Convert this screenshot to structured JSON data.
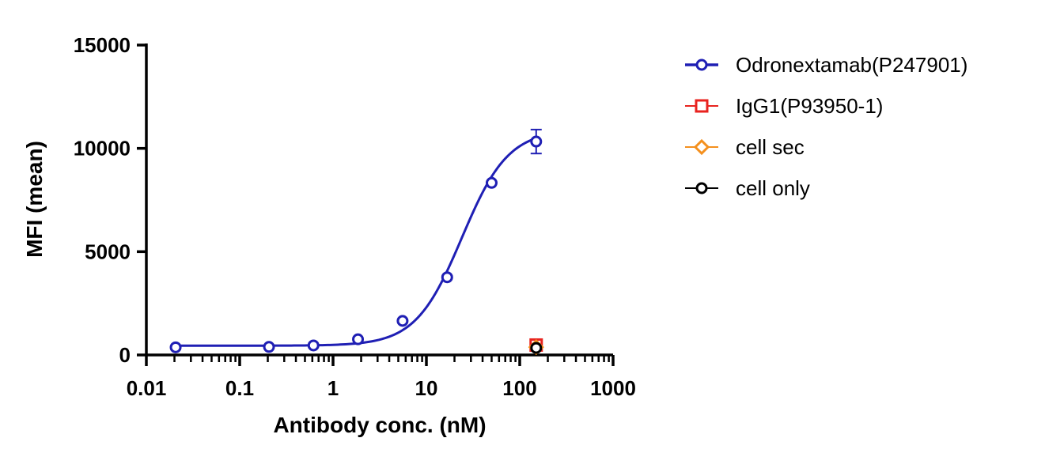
{
  "chart_data": {
    "type": "scatter",
    "xlabel": "Antibody conc. (nM)",
    "ylabel": "MFI (mean)",
    "xscale": "log",
    "xlim": [
      0.01,
      1000
    ],
    "ylim": [
      0,
      15000
    ],
    "xticks": [
      0.01,
      0.1,
      1,
      10,
      100,
      1000
    ],
    "xtick_labels": [
      "0.01",
      "0.1",
      "1",
      "10",
      "100",
      "1000"
    ],
    "yticks": [
      0,
      5000,
      10000,
      15000
    ],
    "ytick_labels": [
      "0",
      "5000",
      "10000",
      "15000"
    ],
    "grid": false,
    "legend_position": "right",
    "series": [
      {
        "name": "Odronextamab(P247901)",
        "color": "#1f1fb4",
        "marker": "circle",
        "fit_curve": true,
        "x": [
          0.0206,
          0.206,
          0.617,
          1.85,
          5.56,
          16.7,
          50,
          150
        ],
        "y": [
          370,
          390,
          460,
          760,
          1650,
          3760,
          8330,
          10330
        ],
        "error": [
          0,
          0,
          0,
          0,
          0,
          0,
          0,
          580
        ],
        "fit": {
          "bottom": 450,
          "top": 10900,
          "ec50": 24,
          "hill": 1.75
        }
      },
      {
        "name": "IgG1(P93950-1)",
        "color": "#e8231f",
        "marker": "square",
        "fit_curve": false,
        "x": [
          150
        ],
        "y": [
          480
        ]
      },
      {
        "name": "cell sec",
        "color": "#f4901e",
        "marker": "diamond",
        "fit_curve": false,
        "x": [
          150
        ],
        "y": [
          380
        ]
      },
      {
        "name": "cell only",
        "color": "#000000",
        "marker": "circle",
        "fit_curve": false,
        "x": [
          150
        ],
        "y": [
          340
        ]
      }
    ]
  }
}
